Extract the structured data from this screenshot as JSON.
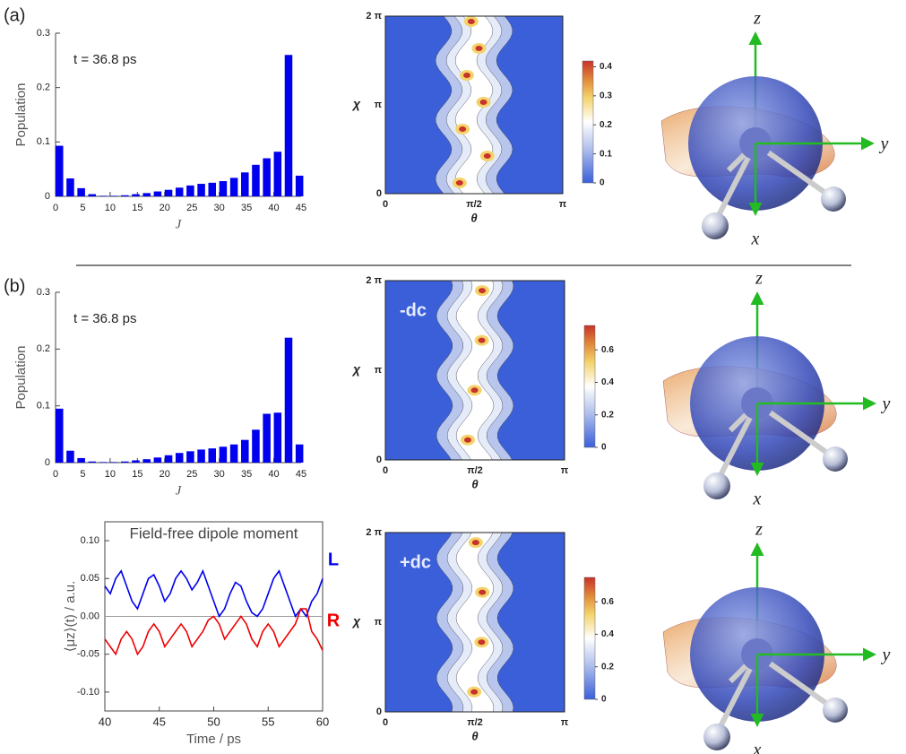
{
  "panel_labels": [
    "(a)",
    "(b)"
  ],
  "chart_data": [
    {
      "type": "bar",
      "annotation": "t = 36.8 ps",
      "xlabel": "J",
      "ylabel": "Population",
      "color": "#0000ee",
      "x": [
        0,
        2,
        4,
        6,
        8,
        10,
        12,
        14,
        16,
        18,
        20,
        22,
        24,
        26,
        28,
        30,
        32,
        34,
        36,
        38,
        40,
        42,
        44
      ],
      "values": [
        0.093,
        0.033,
        0.015,
        0.004,
        0.001,
        0.001,
        0.002,
        0.004,
        0.006,
        0.009,
        0.012,
        0.016,
        0.02,
        0.023,
        0.025,
        0.028,
        0.034,
        0.044,
        0.058,
        0.07,
        0.082,
        0.26,
        0.038
      ],
      "xlim": [
        0,
        45
      ],
      "ylim": [
        0,
        0.3
      ],
      "xticks": [
        0,
        5,
        10,
        15,
        20,
        25,
        30,
        35,
        40,
        45
      ],
      "yticks": [
        0,
        0.1,
        0.2,
        0.3
      ]
    },
    {
      "type": "bar",
      "annotation": "t = 36.8 ps",
      "xlabel": "J",
      "ylabel": "Population",
      "color": "#0000ee",
      "x": [
        0,
        2,
        4,
        6,
        8,
        10,
        12,
        14,
        16,
        18,
        20,
        22,
        24,
        26,
        28,
        30,
        32,
        34,
        36,
        38,
        40,
        42,
        44
      ],
      "values": [
        0.095,
        0.021,
        0.008,
        0.002,
        0.001,
        0.001,
        0.002,
        0.004,
        0.006,
        0.009,
        0.013,
        0.017,
        0.02,
        0.023,
        0.025,
        0.028,
        0.032,
        0.04,
        0.058,
        0.086,
        0.088,
        0.22,
        0.032
      ],
      "xlim": [
        0,
        45
      ],
      "ylim": [
        0,
        0.3
      ],
      "xticks": [
        0,
        5,
        10,
        15,
        20,
        25,
        30,
        35,
        40,
        45
      ],
      "yticks": [
        0,
        0.1,
        0.2,
        0.3
      ]
    },
    {
      "type": "line",
      "annotation": "Field-free dipole moment",
      "xlabel": "Time / ps",
      "ylabel": "⟨μz⟩(t) / a.u.",
      "x": [
        40,
        40.5,
        41,
        41.5,
        42,
        42.5,
        43,
        43.5,
        44,
        44.5,
        45,
        45.5,
        46,
        46.5,
        47,
        47.5,
        48,
        48.5,
        49,
        49.5,
        50,
        50.5,
        51,
        51.5,
        52,
        52.5,
        53,
        53.5,
        54,
        54.5,
        55,
        55.5,
        56,
        56.5,
        57,
        57.5,
        58,
        58.5,
        59,
        59.5,
        60
      ],
      "series": [
        {
          "name": "L",
          "color": "#0000ee",
          "values": [
            0.04,
            0.03,
            0.05,
            0.06,
            0.04,
            0.02,
            0.01,
            0.03,
            0.05,
            0.055,
            0.04,
            0.02,
            0.03,
            0.05,
            0.06,
            0.05,
            0.035,
            0.045,
            0.06,
            0.04,
            0.02,
            0.0,
            0.01,
            0.03,
            0.045,
            0.04,
            0.02,
            0.005,
            0.0,
            0.01,
            0.03,
            0.05,
            0.06,
            0.04,
            0.02,
            0.0,
            0.01,
            0.0,
            0.02,
            0.03,
            0.05
          ]
        },
        {
          "name": "R",
          "color": "#ee0000",
          "values": [
            -0.03,
            -0.04,
            -0.05,
            -0.03,
            -0.02,
            -0.03,
            -0.05,
            -0.04,
            -0.02,
            -0.01,
            -0.02,
            -0.04,
            -0.03,
            -0.02,
            -0.01,
            -0.02,
            -0.04,
            -0.03,
            -0.02,
            -0.005,
            0.0,
            -0.01,
            -0.03,
            -0.02,
            -0.01,
            0.0,
            -0.01,
            -0.03,
            -0.04,
            -0.02,
            -0.01,
            -0.02,
            -0.04,
            -0.03,
            -0.02,
            -0.01,
            0.01,
            0.01,
            -0.02,
            -0.03,
            -0.045
          ]
        }
      ],
      "xlim": [
        40,
        60
      ],
      "ylim": [
        -0.125,
        0.125
      ],
      "xticks": [
        40,
        45,
        50,
        55,
        60
      ],
      "yticks": [
        {
          "value": 0.1,
          "label": "0.10"
        },
        {
          "value": 0.05,
          "label": "0.05"
        },
        {
          "value": 0,
          "label": "0.00"
        },
        {
          "value": -0.05,
          "label": "-0.05"
        },
        {
          "value": -0.1,
          "label": "-0.10"
        }
      ]
    }
  ],
  "maps": [
    {
      "xlabel": "θ",
      "ylabel": "χ",
      "xticks": [
        "0",
        "π/2",
        "π"
      ],
      "yticks": [
        "0",
        "π",
        "2 π"
      ],
      "clim": [
        0,
        0.42
      ],
      "cticks": [
        0,
        0.1,
        0.2,
        0.3,
        0.4
      ]
    },
    {
      "tag": "-dc",
      "xlabel": "θ",
      "ylabel": "χ",
      "xticks": [
        "0",
        "π/2",
        "π"
      ],
      "yticks": [
        "0",
        "π",
        "2 π"
      ],
      "clim": [
        0,
        0.75
      ],
      "cticks": [
        0,
        0.2,
        0.4,
        0.6
      ]
    },
    {
      "tag": "+dc",
      "xlabel": "θ",
      "ylabel": "χ",
      "xticks": [
        "0",
        "π/2",
        "π"
      ],
      "yticks": [
        "0",
        "π",
        "2 π"
      ],
      "clim": [
        0,
        0.75
      ],
      "cticks": [
        0,
        0.2,
        0.4,
        0.6
      ]
    }
  ],
  "axes3d": [
    [
      "z",
      "y",
      "x"
    ],
    [
      "z",
      "y",
      "x"
    ],
    [
      "z",
      "y",
      "x"
    ]
  ]
}
